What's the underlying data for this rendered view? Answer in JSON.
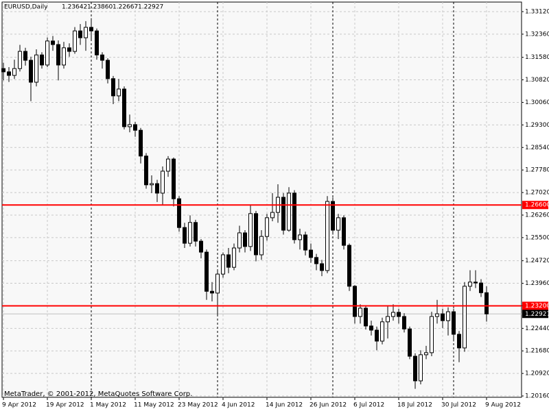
{
  "chart_data": {
    "type": "candlestick",
    "title": "EURUSD,Daily",
    "info_labels": [
      "1.23642",
      "1.23860",
      "1.22667",
      "1.22927"
    ],
    "copyright": "MetaTrader, © 2001-2012, MetaQuotes Software Corp.",
    "categories": [
      "9 Apr 2012",
      null,
      null,
      null,
      null,
      null,
      null,
      null,
      "19 Apr 2012",
      null,
      null,
      null,
      null,
      null,
      null,
      null,
      "1 May 2012",
      null,
      null,
      null,
      null,
      null,
      null,
      null,
      "11 May 2012",
      null,
      null,
      null,
      null,
      null,
      null,
      null,
      "23 May 2012",
      null,
      null,
      null,
      null,
      null,
      null,
      null,
      "4 Jun 2012",
      null,
      null,
      null,
      null,
      null,
      null,
      null,
      "14 Jun 2012",
      null,
      null,
      null,
      null,
      null,
      null,
      null,
      "26 Jun 2012",
      null,
      null,
      null,
      null,
      null,
      null,
      null,
      "6 Jul 2012",
      null,
      null,
      null,
      null,
      null,
      null,
      null,
      "18 Jul 2012",
      null,
      null,
      null,
      null,
      null,
      null,
      null,
      "30 Jul 2012",
      null,
      null,
      null,
      null,
      null,
      null,
      null,
      "9 Aug 2012"
    ],
    "open": [
      1.312,
      1.3109,
      1.3097,
      1.312,
      1.3178,
      1.3148,
      1.3074,
      1.3166,
      1.3132,
      1.3213,
      1.3201,
      1.3132,
      1.319,
      1.3178,
      1.3247,
      1.3224,
      1.3259,
      1.3247,
      1.3166,
      1.3148,
      1.3086,
      1.3028,
      1.3051,
      1.2924,
      1.2931,
      1.2912,
      1.2825,
      1.2728,
      1.2732,
      1.27,
      1.2774,
      1.2815,
      1.2681,
      1.2584,
      1.2531,
      1.2601,
      1.2538,
      1.2501,
      1.2369,
      1.2363,
      1.2427,
      1.2492,
      1.245,
      1.2515,
      1.2566,
      1.252,
      1.2631,
      1.2492,
      1.2554,
      1.2617,
      1.2635,
      1.2686,
      1.2575,
      1.27,
      1.2543,
      1.2559,
      1.2508,
      1.2483,
      1.2462,
      1.2439,
      1.2672,
      1.2575,
      1.2617,
      1.2524,
      1.2386,
      1.2284,
      1.2312,
      1.2252,
      1.2238,
      1.2201,
      1.2266,
      1.2284,
      1.2298,
      1.2284,
      1.2242,
      1.215,
      1.2067,
      1.2155,
      1.2162,
      1.2284,
      1.2293,
      1.227,
      1.23,
      1.2224,
      1.2178,
      1.2386,
      1.24,
      1.2397,
      1.23642
    ],
    "high": [
      1.314,
      1.3125,
      1.315,
      1.32,
      1.319,
      1.316,
      1.3185,
      1.3175,
      1.3225,
      1.323,
      1.3215,
      1.321,
      1.3205,
      1.326,
      1.327,
      1.328,
      1.329,
      1.3255,
      1.3175,
      1.3155,
      1.3095,
      1.3085,
      1.306,
      1.2965,
      1.294,
      1.292,
      1.2835,
      1.276,
      1.2745,
      1.279,
      1.2825,
      1.282,
      1.269,
      1.26,
      1.2625,
      1.261,
      1.2545,
      1.251,
      1.24,
      1.244,
      1.25,
      1.2515,
      1.253,
      1.259,
      1.2575,
      1.266,
      1.264,
      1.2575,
      1.263,
      1.27,
      1.273,
      1.27,
      1.272,
      1.271,
      1.258,
      1.257,
      1.253,
      1.2495,
      1.2475,
      1.269,
      1.2685,
      1.263,
      1.2625,
      1.253,
      1.239,
      1.2325,
      1.232,
      1.227,
      1.225,
      1.228,
      1.232,
      1.2325,
      1.231,
      1.2295,
      1.225,
      1.216,
      1.217,
      1.2185,
      1.23,
      1.234,
      1.231,
      1.2315,
      1.231,
      1.2235,
      1.24,
      1.244,
      1.244,
      1.241,
      1.2386
    ],
    "low": [
      1.308,
      1.3075,
      1.3085,
      1.311,
      1.313,
      1.301,
      1.306,
      1.312,
      1.3125,
      1.318,
      1.308,
      1.312,
      1.316,
      1.317,
      1.32,
      1.318,
      1.3215,
      1.315,
      1.312,
      1.307,
      1.3,
      1.301,
      1.2915,
      1.2905,
      1.289,
      1.28,
      1.2715,
      1.27,
      1.267,
      1.266,
      1.2755,
      1.2655,
      1.257,
      1.2515,
      1.252,
      1.252,
      1.248,
      1.234,
      1.2335,
      1.229,
      1.2415,
      1.243,
      1.244,
      1.25,
      1.25,
      1.2505,
      1.247,
      1.2475,
      1.254,
      1.2605,
      1.26,
      1.256,
      1.257,
      1.253,
      1.251,
      1.249,
      1.2465,
      1.244,
      1.242,
      1.243,
      1.256,
      1.2545,
      1.251,
      1.237,
      1.226,
      1.226,
      1.224,
      1.222,
      1.217,
      1.219,
      1.221,
      1.227,
      1.226,
      1.223,
      1.214,
      1.204,
      1.2055,
      1.214,
      1.215,
      1.226,
      1.2245,
      1.222,
      1.22,
      1.213,
      1.2165,
      1.237,
      1.238,
      1.235,
      1.22667
    ],
    "close": [
      1.3109,
      1.3097,
      1.312,
      1.3178,
      1.3148,
      1.3074,
      1.3166,
      1.3132,
      1.3213,
      1.3201,
      1.3132,
      1.319,
      1.3178,
      1.3247,
      1.3224,
      1.3259,
      1.3247,
      1.3166,
      1.3148,
      1.3086,
      1.3028,
      1.3051,
      1.2924,
      1.2931,
      1.2912,
      1.2825,
      1.2728,
      1.2732,
      1.27,
      1.2774,
      1.2815,
      1.2681,
      1.2584,
      1.2531,
      1.2601,
      1.2538,
      1.2501,
      1.2369,
      1.2363,
      1.2427,
      1.2492,
      1.245,
      1.2515,
      1.2566,
      1.252,
      1.2631,
      1.2492,
      1.2554,
      1.2617,
      1.2635,
      1.2686,
      1.2575,
      1.27,
      1.2543,
      1.2559,
      1.2508,
      1.2483,
      1.2462,
      1.2439,
      1.2672,
      1.2575,
      1.2617,
      1.2524,
      1.2386,
      1.2284,
      1.2312,
      1.2252,
      1.2238,
      1.2201,
      1.2266,
      1.2284,
      1.2298,
      1.2284,
      1.2242,
      1.215,
      1.2067,
      1.2155,
      1.2162,
      1.2284,
      1.2293,
      1.227,
      1.23,
      1.2224,
      1.2178,
      1.2386,
      1.24,
      1.2397,
      1.23642,
      1.22927
    ],
    "up_color": "#ffffff",
    "down_color": "#000000",
    "ylim": [
      1.20115,
      1.33443
    ],
    "yticks": [
      {
        "value": 1.3312,
        "label": "1.33120"
      },
      {
        "value": 1.3236,
        "label": "1.32360"
      },
      {
        "value": 1.3158,
        "label": "1.31580"
      },
      {
        "value": 1.3082,
        "label": "1.30820"
      },
      {
        "value": 1.3006,
        "label": "1.30060"
      },
      {
        "value": 1.293,
        "label": "1.29300"
      },
      {
        "value": 1.2854,
        "label": "1.28540"
      },
      {
        "value": 1.2778,
        "label": "1.27780"
      },
      {
        "value": 1.2702,
        "label": "1.27020"
      },
      {
        "value": 1.2626,
        "label": "1.26260"
      },
      {
        "value": 1.255,
        "label": "1.25500"
      },
      {
        "value": 1.2472,
        "label": "1.24720"
      },
      {
        "value": 1.2396,
        "label": "1.23960"
      },
      {
        "value": 1.232,
        "label": "1.23200"
      },
      {
        "value": 1.2244,
        "label": "1.22440"
      },
      {
        "value": 1.2168,
        "label": "1.21680"
      },
      {
        "value": 1.2092,
        "label": "1.20920"
      },
      {
        "value": 1.2016,
        "label": "1.20160"
      }
    ],
    "grid": true,
    "period_separators": [
      16,
      39,
      60,
      82
    ],
    "hlines": [
      {
        "value": 1.266,
        "label": "1.26600",
        "color": "#ff0000"
      },
      {
        "value": 1.232,
        "label": "1.23200",
        "color": "#ff0000"
      }
    ],
    "bid": {
      "value": 1.22927,
      "label": "1.22927",
      "color": "#c0c0c0"
    }
  }
}
